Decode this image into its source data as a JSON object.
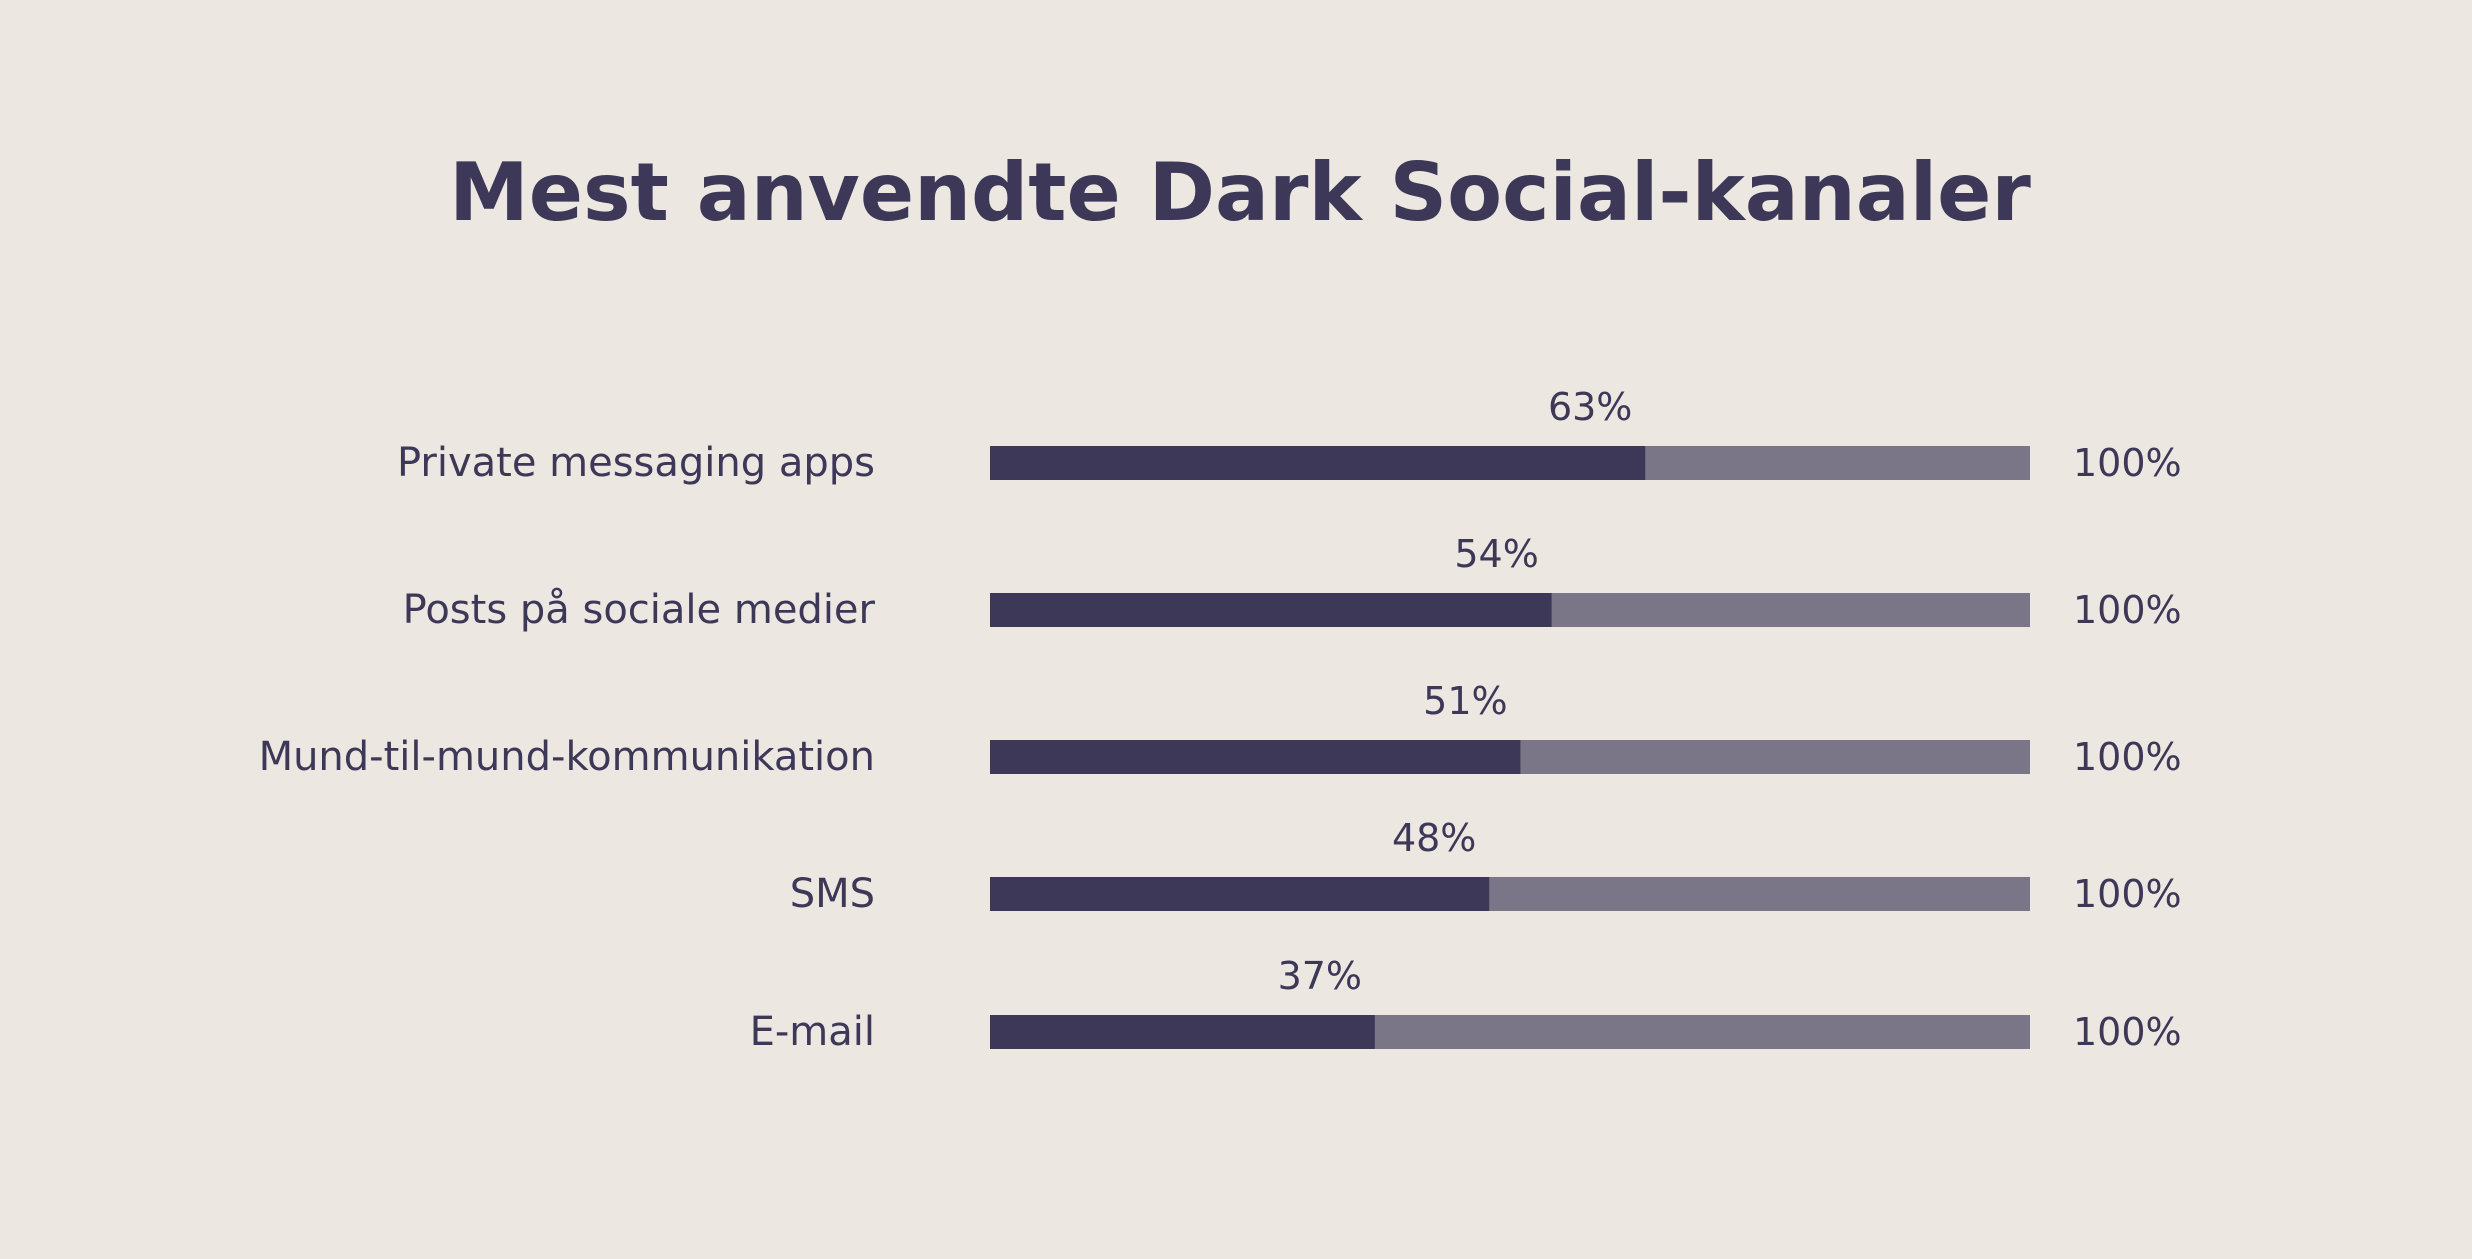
{
  "chart_data": {
    "type": "bar",
    "orientation": "horizontal",
    "title": "Mest anvendte Dark Social-kanaler",
    "categories": [
      "Private messaging apps",
      "Posts på sociale medier",
      "Mund-til-mund-kommunikation",
      "SMS",
      "E-mail"
    ],
    "values": [
      63,
      54,
      51,
      48,
      37
    ],
    "value_labels": [
      "63%",
      "54%",
      "51%",
      "48%",
      "37%"
    ],
    "totals": [
      100,
      100,
      100,
      100,
      100
    ],
    "total_labels": [
      "100%",
      "100%",
      "100%",
      "100%",
      "100%"
    ],
    "xlim": [
      0,
      100
    ],
    "grid": false,
    "colors": {
      "background": "#ece7e1",
      "value_bar": "#3d3857",
      "remainder_bar": "#7a7587",
      "text": "#3d3857"
    }
  }
}
